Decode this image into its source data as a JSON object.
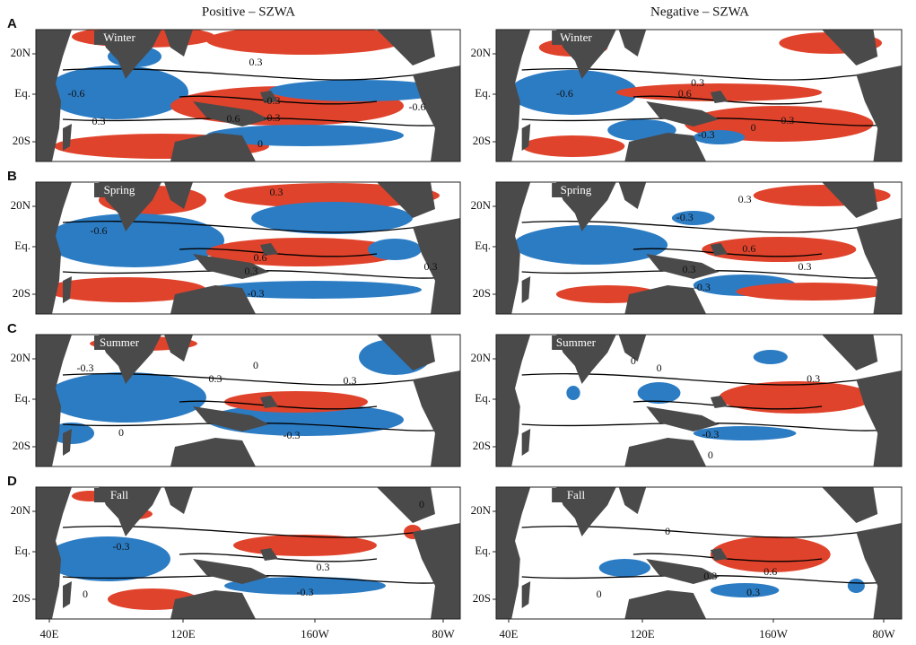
{
  "columns": [
    "Positive – SZWA",
    "Negative – SZWA"
  ],
  "rows": [
    {
      "letter": "A",
      "season": "Winter"
    },
    {
      "letter": "B",
      "season": "Spring"
    },
    {
      "letter": "C",
      "season": "Summer"
    },
    {
      "letter": "D",
      "season": "Fall"
    }
  ],
  "lat_labels": [
    "20N",
    "Eq.",
    "20S"
  ],
  "lon_labels": [
    "40E",
    "120E",
    "160W",
    "80W"
  ],
  "contour_labels": [
    [
      [
        "0.3",
        "-0.6",
        "0.6",
        "-0.3",
        "-0.6",
        "0.3",
        "-0.3",
        "0"
      ],
      [
        "-0.6",
        "0.6",
        "0.3",
        "0.3",
        "-0.3",
        "0"
      ]
    ],
    [
      [
        "0.3",
        "-0.6",
        "0.6",
        "0.3",
        "-0.3",
        "0.3"
      ],
      [
        "0.3",
        "-0.3",
        "0.6",
        "0.3",
        "0.3",
        "-0.3"
      ]
    ],
    [
      [
        "-0.3",
        "0.3",
        "-0.3",
        "0",
        "0.3",
        "0"
      ],
      [
        "0",
        "0.3",
        "-0.3",
        "0",
        "0"
      ]
    ],
    [
      [
        "-0.3",
        "0.3",
        "-0.3",
        "0",
        "0"
      ],
      [
        "0.6",
        "0.3",
        "0.3",
        "0",
        "0"
      ]
    ]
  ]
}
